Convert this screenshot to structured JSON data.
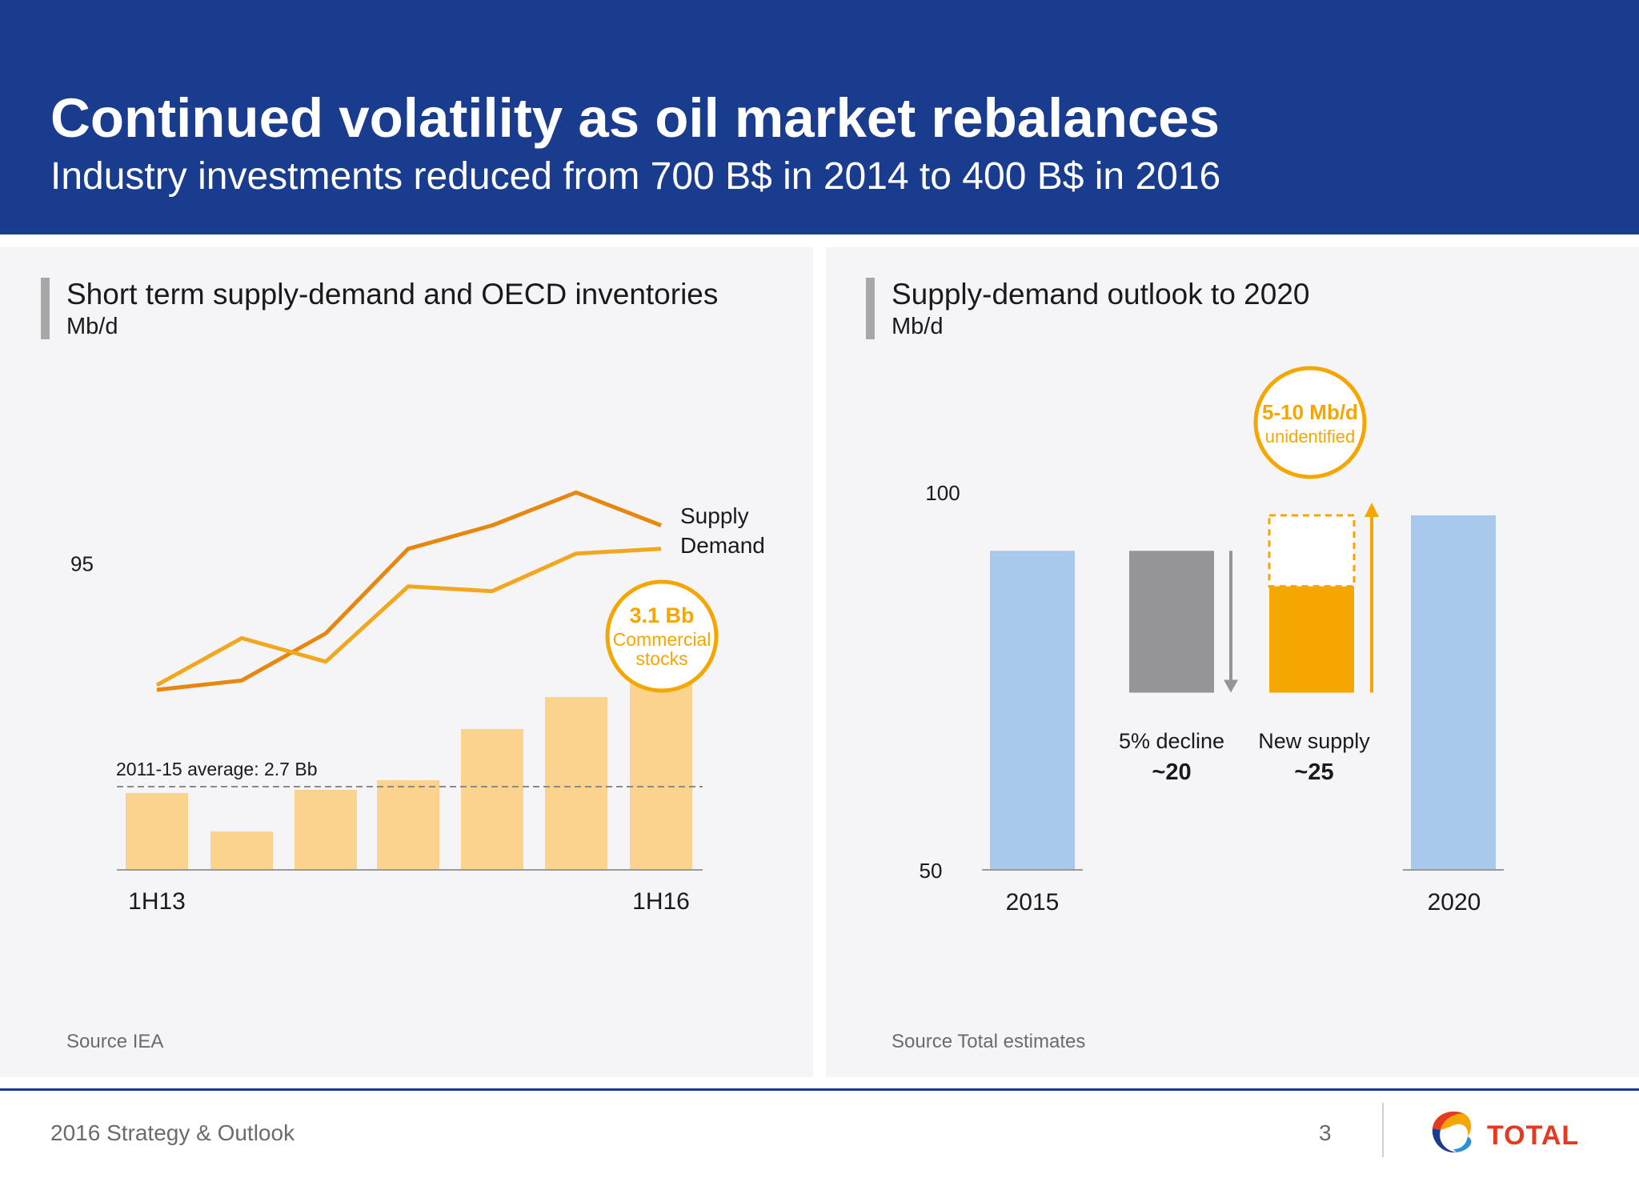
{
  "header": {
    "title": "Continued volatility as oil market rebalances",
    "subtitle": "Industry investments reduced from 700 B$ in 2014 to 400 B$ in 2016"
  },
  "left_panel": {
    "title": "Short term supply-demand and OECD inventories",
    "unit": "Mb/d",
    "source": "Source IEA"
  },
  "right_panel": {
    "title": "Supply-demand outlook to 2020",
    "unit": "Mb/d",
    "source": "Source Total estimates"
  },
  "footer": {
    "text": "2016 Strategy & Outlook",
    "page": "3",
    "logo_text": "TOTAL"
  },
  "colors": {
    "brand_blue": "#1a3c8f",
    "supply_line": "#e8870e",
    "demand_line": "#f1a81e",
    "stock_bars": "#fbd38f",
    "avg_line": "#8a8a8a",
    "bar_2015_2020": "#a9c9ec",
    "decline_bar": "#959499",
    "new_supply": "#f6a600",
    "callout": "#f6a600"
  },
  "chart_data": [
    {
      "type": "line",
      "x_labels": [
        "1H13",
        "",
        "",
        "",
        "",
        "",
        "1H16"
      ],
      "y_tick": "95",
      "ylim": [
        91.5,
        97.8
      ],
      "series": [
        {
          "name": "Supply",
          "values": [
            92.3,
            92.5,
            93.5,
            95.3,
            95.8,
            96.5,
            95.8
          ]
        },
        {
          "name": "Demand",
          "values": [
            92.4,
            93.4,
            92.9,
            94.5,
            94.4,
            95.2,
            95.3
          ]
        }
      ],
      "inventory_bars": {
        "values": [
          2.6,
          2.0,
          2.65,
          2.8,
          3.6,
          4.1,
          4.6
        ],
        "ylim": [
          1.4,
          5.0
        ]
      },
      "average": {
        "label": "2011-15 average: 2.7 Bb",
        "value": 2.7
      },
      "callout": {
        "value": "3.1 Bb",
        "line1": "Commercial",
        "line2": "stocks"
      }
    },
    {
      "type": "bar",
      "categories": [
        "2015",
        "5% decline",
        "New supply",
        "2020"
      ],
      "y_ticks": [
        "100",
        "50"
      ],
      "ylim": [
        50,
        100
      ],
      "bars": [
        {
          "label": "2015",
          "value": 95
        },
        {
          "label": "5% decline",
          "delta_label": "~20",
          "from": 95,
          "to": 75
        },
        {
          "label": "New supply",
          "delta_label": "~25",
          "from": 75,
          "to": 90,
          "dashed_to": 100
        },
        {
          "label": "2020",
          "value": 100
        }
      ],
      "callout": {
        "value": "5-10 Mb/d",
        "line1": "unidentified"
      }
    }
  ]
}
